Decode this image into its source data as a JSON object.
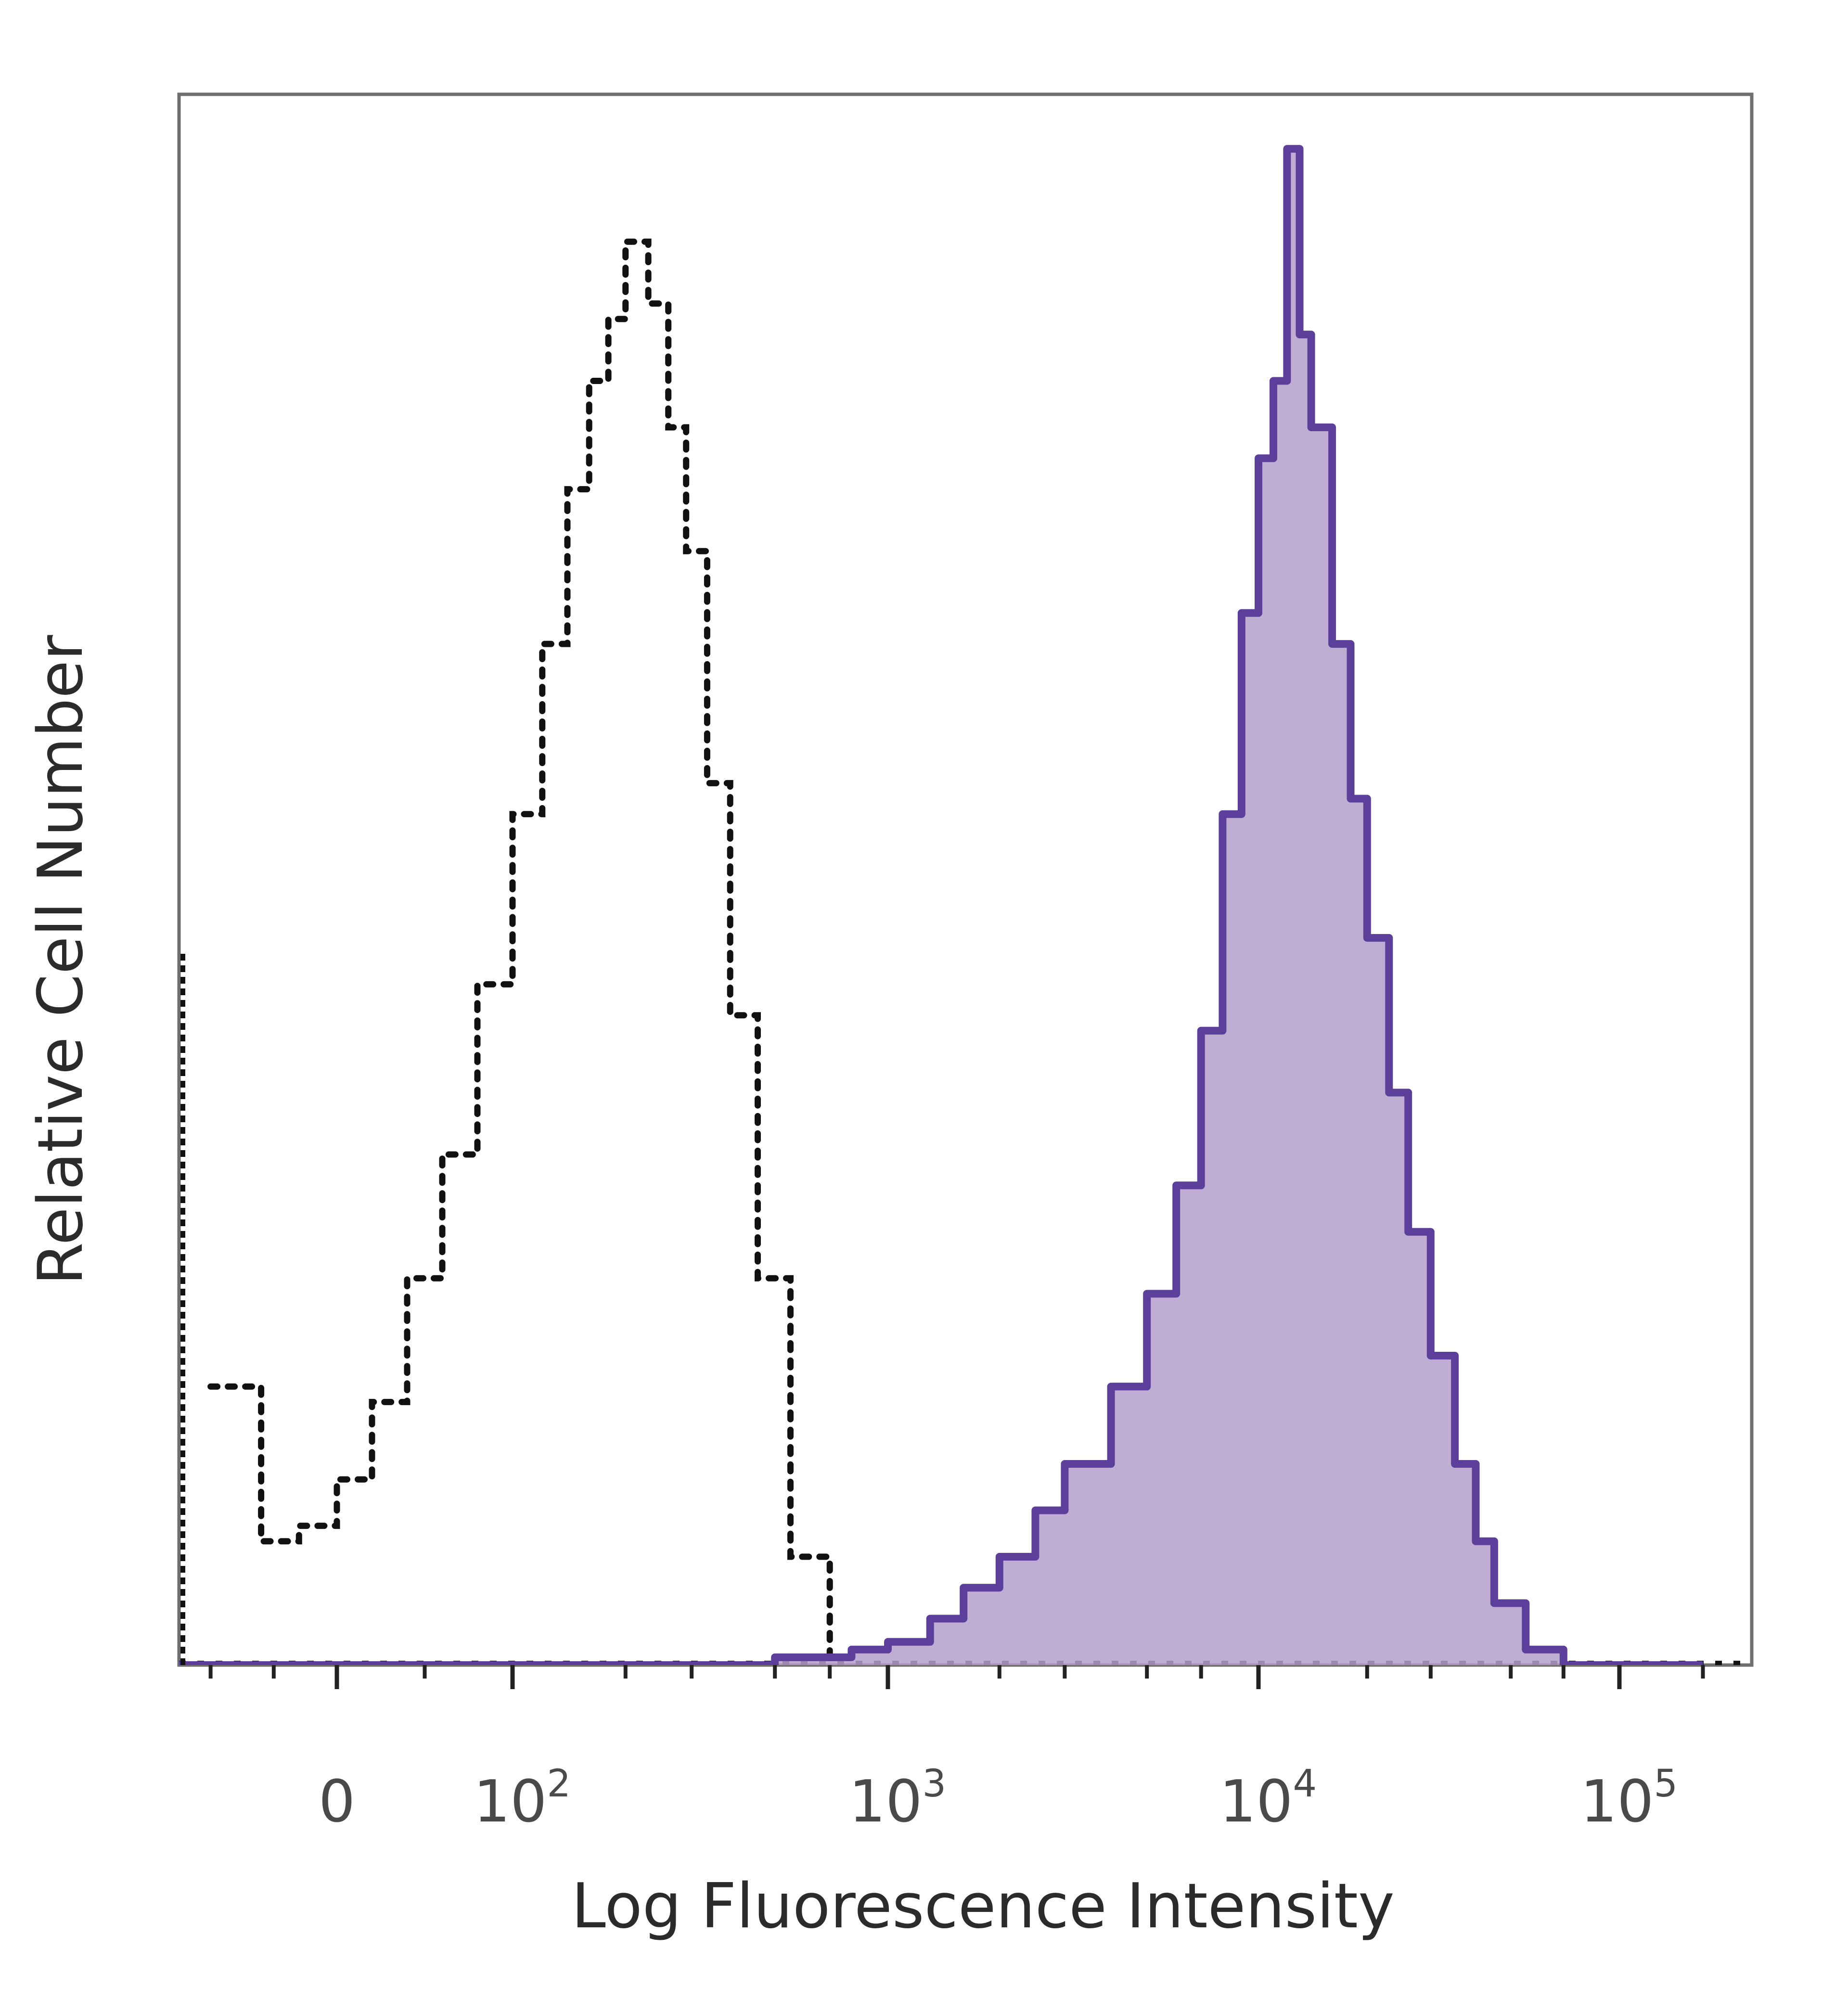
{
  "chart_data": {
    "type": "histogram",
    "xlabel": "Log Fluorescence Intensity",
    "ylabel": "Relative Cell Number",
    "x_scale": "biexponential",
    "x_ticks": [
      {
        "value": 0,
        "base": "0",
        "exp": ""
      },
      {
        "value": 100,
        "base": "10",
        "exp": "2"
      },
      {
        "value": 1000,
        "base": "10",
        "exp": "3"
      },
      {
        "value": 10000,
        "base": "10",
        "exp": "4"
      },
      {
        "value": 100000,
        "base": "10",
        "exp": "5"
      }
    ],
    "ylim": [
      0,
      100
    ],
    "colors": {
      "stained_line": "#5b3f9a",
      "stained_fill": "#b59fcb",
      "control": "#111111",
      "frame": "#6f6f6f"
    },
    "series": [
      {
        "style": "dotted",
        "color": "#111111",
        "x": [
          -200,
          -120,
          -60,
          0,
          20,
          40,
          60,
          80,
          100,
          120,
          140,
          160,
          180,
          200,
          230,
          260,
          290,
          330,
          380,
          450,
          550,
          700
        ],
        "y": [
          18,
          8,
          9,
          12,
          17,
          25,
          33,
          44,
          55,
          66,
          76,
          83,
          87,
          92,
          88,
          80,
          72,
          57,
          42,
          25,
          7,
          0
        ]
      },
      {
        "style": "solid_filled",
        "color": "#5b3f9a",
        "x": [
          -250,
          0,
          300,
          500,
          800,
          1000,
          1300,
          1600,
          2000,
          2500,
          3000,
          4000,
          5000,
          6000,
          7000,
          8000,
          9000,
          10000,
          11000,
          12000,
          13000,
          14000,
          16000,
          18000,
          20000,
          23000,
          26000,
          30000,
          35000,
          40000,
          45000,
          55000,
          70000,
          100000,
          200000
        ],
        "y": [
          0,
          0,
          0,
          0.5,
          1,
          1.5,
          3,
          5,
          7,
          10,
          13,
          18,
          24,
          31,
          41,
          55,
          68,
          78,
          83,
          98,
          86,
          80,
          66,
          56,
          47,
          37,
          28,
          20,
          13,
          8,
          4,
          1,
          0,
          0,
          0
        ]
      }
    ]
  }
}
